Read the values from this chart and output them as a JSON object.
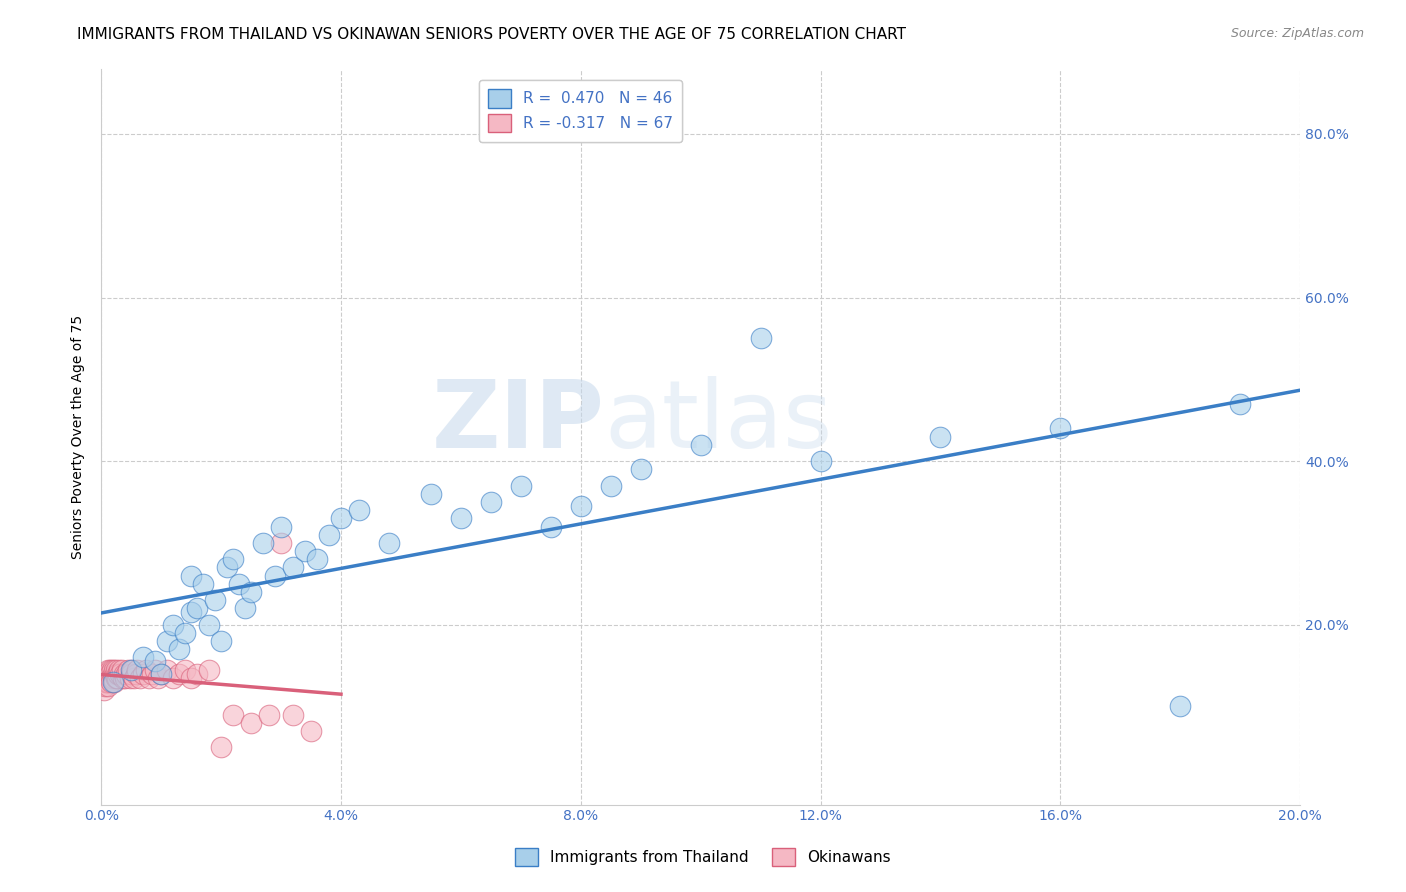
{
  "title": "IMMIGRANTS FROM THAILAND VS OKINAWAN SENIORS POVERTY OVER THE AGE OF 75 CORRELATION CHART",
  "source": "Source: ZipAtlas.com",
  "ylabel": "Seniors Poverty Over the Age of 75",
  "xlabel": "",
  "xlim": [
    0.0,
    0.2
  ],
  "ylim": [
    -0.02,
    0.88
  ],
  "xticks": [
    0.0,
    0.04,
    0.08,
    0.12,
    0.16,
    0.2
  ],
  "yticks": [
    0.0,
    0.2,
    0.4,
    0.6,
    0.8
  ],
  "ytick_labels": [
    "",
    "20.0%",
    "40.0%",
    "60.0%",
    "80.0%"
  ],
  "xtick_labels": [
    "0.0%",
    "4.0%",
    "8.0%",
    "12.0%",
    "16.0%",
    "20.0%"
  ],
  "blue_R": 0.47,
  "blue_N": 46,
  "pink_R": -0.317,
  "pink_N": 67,
  "blue_color": "#A8CFEA",
  "pink_color": "#F5B8C4",
  "blue_line_color": "#3A7EC6",
  "pink_line_color": "#D9607A",
  "legend1_label": "R =  0.470   N = 46",
  "legend2_label": "R = -0.317   N = 67",
  "legend_bottom_label1": "Immigrants from Thailand",
  "legend_bottom_label2": "Okinawans",
  "watermark_zip": "ZIP",
  "watermark_atlas": "atlas",
  "blue_x": [
    0.002,
    0.005,
    0.007,
    0.009,
    0.01,
    0.011,
    0.012,
    0.013,
    0.014,
    0.015,
    0.015,
    0.016,
    0.017,
    0.018,
    0.019,
    0.02,
    0.021,
    0.022,
    0.023,
    0.024,
    0.025,
    0.027,
    0.029,
    0.03,
    0.032,
    0.034,
    0.036,
    0.038,
    0.04,
    0.043,
    0.048,
    0.055,
    0.06,
    0.065,
    0.07,
    0.075,
    0.08,
    0.085,
    0.09,
    0.1,
    0.11,
    0.12,
    0.14,
    0.16,
    0.18,
    0.19
  ],
  "blue_y": [
    0.13,
    0.145,
    0.16,
    0.155,
    0.14,
    0.18,
    0.2,
    0.17,
    0.19,
    0.215,
    0.26,
    0.22,
    0.25,
    0.2,
    0.23,
    0.18,
    0.27,
    0.28,
    0.25,
    0.22,
    0.24,
    0.3,
    0.26,
    0.32,
    0.27,
    0.29,
    0.28,
    0.31,
    0.33,
    0.34,
    0.3,
    0.36,
    0.33,
    0.35,
    0.37,
    0.32,
    0.345,
    0.37,
    0.39,
    0.42,
    0.55,
    0.4,
    0.43,
    0.44,
    0.1,
    0.47
  ],
  "pink_x": [
    0.0002,
    0.0003,
    0.0004,
    0.0005,
    0.0005,
    0.0006,
    0.0007,
    0.0008,
    0.0009,
    0.001,
    0.001,
    0.0011,
    0.0012,
    0.0012,
    0.0013,
    0.0014,
    0.0015,
    0.0015,
    0.0016,
    0.0017,
    0.0018,
    0.0019,
    0.002,
    0.0021,
    0.0022,
    0.0023,
    0.0024,
    0.0025,
    0.0026,
    0.0027,
    0.0028,
    0.003,
    0.0032,
    0.0034,
    0.0036,
    0.0038,
    0.004,
    0.0042,
    0.0045,
    0.0048,
    0.005,
    0.0052,
    0.0055,
    0.0058,
    0.006,
    0.0065,
    0.007,
    0.0075,
    0.008,
    0.0085,
    0.009,
    0.0095,
    0.01,
    0.011,
    0.012,
    0.013,
    0.014,
    0.015,
    0.016,
    0.018,
    0.02,
    0.022,
    0.025,
    0.028,
    0.03,
    0.032,
    0.035
  ],
  "pink_y": [
    0.135,
    0.13,
    0.14,
    0.13,
    0.12,
    0.135,
    0.125,
    0.13,
    0.14,
    0.135,
    0.13,
    0.145,
    0.13,
    0.125,
    0.14,
    0.135,
    0.145,
    0.14,
    0.135,
    0.13,
    0.145,
    0.14,
    0.135,
    0.145,
    0.13,
    0.14,
    0.135,
    0.145,
    0.14,
    0.135,
    0.14,
    0.145,
    0.14,
    0.145,
    0.135,
    0.14,
    0.135,
    0.14,
    0.145,
    0.135,
    0.14,
    0.145,
    0.135,
    0.14,
    0.145,
    0.135,
    0.14,
    0.145,
    0.135,
    0.14,
    0.145,
    0.135,
    0.14,
    0.145,
    0.135,
    0.14,
    0.145,
    0.135,
    0.14,
    0.145,
    0.05,
    0.09,
    0.08,
    0.09,
    0.3,
    0.09,
    0.07
  ],
  "grid_color": "#CCCCCC",
  "background_color": "#FFFFFF",
  "title_fontsize": 11,
  "axis_label_fontsize": 10,
  "tick_fontsize": 10,
  "source_fontsize": 9
}
